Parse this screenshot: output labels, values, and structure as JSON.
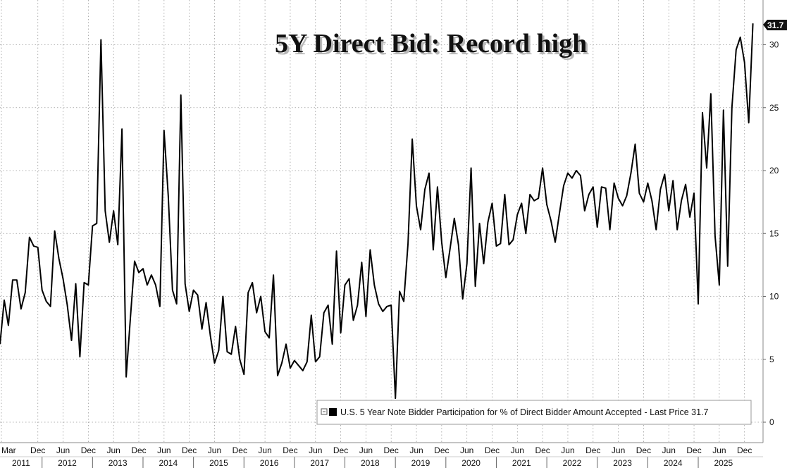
{
  "chart_data": {
    "type": "line",
    "title": "5Y Direct Bid: Record high",
    "xlabel": "",
    "ylabel": "",
    "ylim": [
      0,
      32
    ],
    "yticks": [
      0,
      5,
      10,
      15,
      20,
      25,
      30
    ],
    "grid": true,
    "legend": "bottom-right",
    "last_value_label": "31.7",
    "x_month_ticks": [
      "Mar",
      "Dec",
      "Jun",
      "Dec",
      "Jun",
      "Dec",
      "Jun",
      "Dec",
      "Jun",
      "Dec",
      "Jun",
      "Dec",
      "Jun",
      "Dec",
      "Jun",
      "Dec",
      "Jun",
      "Dec",
      "Jun",
      "Dec",
      "Jun",
      "Dec",
      "Jun",
      "Dec",
      "Jun",
      "Dec",
      "Jun",
      "Dec",
      "Jun",
      "Dec"
    ],
    "x_year_ticks": [
      "2011",
      "2012",
      "2013",
      "2014",
      "2015",
      "2016",
      "2017",
      "2018",
      "2019",
      "2020",
      "2021",
      "2022",
      "2023",
      "2024",
      "2025"
    ],
    "series": [
      {
        "name": "U.S. 5 Year Note Bidder Participation for % of Direct Bidder Amount Accepted - Last Price 31.7",
        "color": "#000000",
        "values": [
          6.2,
          9.7,
          7.7,
          11.3,
          11.3,
          9.0,
          10.3,
          14.7,
          14.0,
          13.9,
          10.5,
          9.6,
          9.2,
          15.2,
          13.0,
          11.4,
          9.3,
          6.5,
          11.0,
          5.2,
          11.1,
          10.9,
          15.6,
          15.8,
          30.4,
          16.8,
          14.3,
          16.8,
          14.1,
          23.3,
          3.6,
          8.3,
          12.8,
          11.9,
          12.2,
          10.9,
          11.7,
          10.9,
          9.2,
          23.2,
          18.0,
          10.5,
          9.4,
          26.0,
          11.0,
          8.8,
          10.5,
          10.1,
          7.4,
          9.5,
          6.9,
          4.7,
          5.7,
          10.0,
          5.6,
          5.4,
          7.6,
          5.0,
          3.8,
          10.3,
          11.1,
          8.7,
          10.0,
          7.2,
          6.7,
          11.7,
          3.7,
          4.7,
          6.2,
          4.3,
          4.9,
          4.5,
          4.1,
          4.8,
          8.5,
          4.8,
          5.2,
          8.7,
          9.3,
          6.2,
          13.6,
          7.1,
          10.9,
          11.4,
          8.1,
          9.3,
          12.7,
          8.4,
          13.7,
          10.9,
          9.4,
          8.8,
          9.2,
          9.3,
          1.9,
          10.4,
          9.6,
          14.2,
          22.5,
          17.2,
          15.3,
          18.5,
          19.8,
          13.7,
          18.7,
          14.3,
          11.5,
          13.8,
          16.2,
          14.1,
          9.8,
          12.6,
          20.2,
          10.8,
          15.8,
          12.6,
          15.9,
          17.4,
          14.0,
          14.2,
          18.1,
          14.1,
          14.5,
          16.5,
          17.4,
          15.0,
          18.1,
          17.6,
          17.8,
          20.2,
          17.3,
          16.0,
          14.3,
          16.6,
          18.8,
          19.8,
          19.4,
          20.0,
          19.6,
          16.8,
          18.1,
          18.7,
          15.5,
          18.7,
          18.6,
          15.3,
          19.0,
          17.8,
          17.2,
          18.0,
          19.8,
          22.1,
          18.2,
          17.5,
          19.0,
          17.6,
          15.3,
          18.5,
          19.7,
          16.8,
          19.2,
          15.3,
          17.6,
          18.9,
          16.3,
          18.2,
          9.4,
          24.6,
          20.2,
          26.1,
          14.8,
          10.9,
          24.8,
          12.4,
          25.0,
          29.6,
          30.6,
          28.6,
          23.8,
          31.7
        ]
      }
    ]
  }
}
